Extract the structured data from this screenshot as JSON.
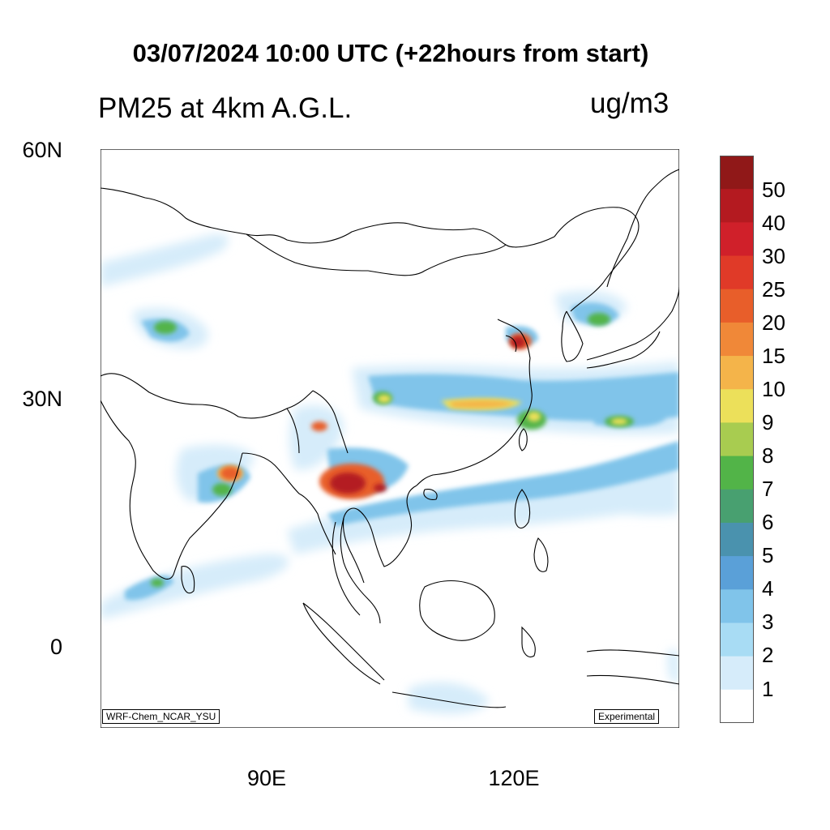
{
  "header": {
    "title": "03/07/2024 10:00 UTC (+22hours from start)",
    "variable": "PM25 at 4km A.G.L.",
    "units": "ug/m3"
  },
  "axes": {
    "lat_labels": [
      "60N",
      "30N",
      "0"
    ],
    "lon_labels": [
      "90E",
      "120E"
    ],
    "lon_range": [
      70,
      140
    ],
    "lat_range": [
      -10,
      60
    ]
  },
  "corner_labels": {
    "model": "WRF-Chem_NCAR_YSU",
    "status": "Experimental"
  },
  "colorbar": {
    "levels": [
      "1",
      "2",
      "3",
      "4",
      "5",
      "6",
      "7",
      "8",
      "9",
      "10",
      "15",
      "20",
      "25",
      "30",
      "40",
      "50"
    ],
    "colors": [
      "#ffffff",
      "#d6ecfa",
      "#a8dcf4",
      "#80c4ea",
      "#5aa0d8",
      "#4a92ae",
      "#48a070",
      "#52b448",
      "#a8cc50",
      "#ece05a",
      "#f4b44a",
      "#f08838",
      "#e85e2a",
      "#e03a28",
      "#d0202a",
      "#b41a20",
      "#901818"
    ]
  }
}
